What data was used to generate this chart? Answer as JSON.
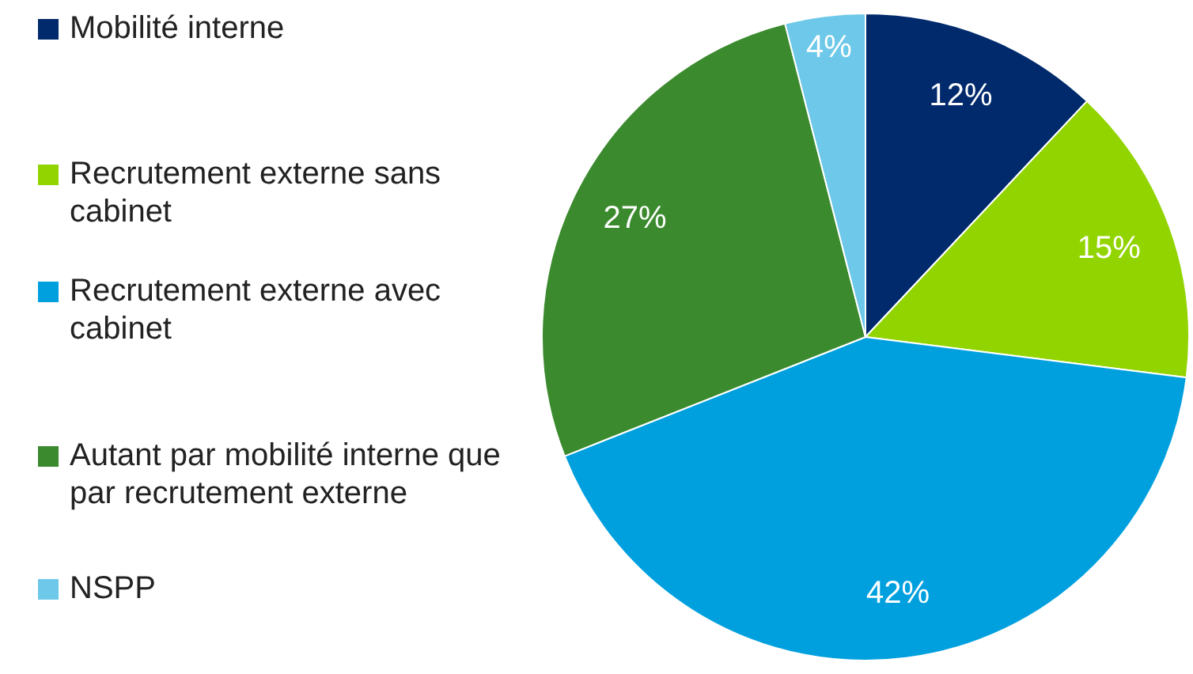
{
  "chart_data": {
    "type": "pie",
    "categories": [
      "Mobilité interne",
      "Recrutement externe sans cabinet",
      "Recrutement externe avec cabinet",
      "Autant par mobilité interne que par recrutement externe",
      "NSPP"
    ],
    "values": [
      12,
      15,
      42,
      27,
      4
    ],
    "colors": [
      "#002a6c",
      "#92d400",
      "#00a0df",
      "#3b8a2e",
      "#6dc8e9"
    ],
    "value_labels": [
      "12%",
      "15%",
      "42%",
      "27%",
      "4%"
    ],
    "legend": "left"
  }
}
